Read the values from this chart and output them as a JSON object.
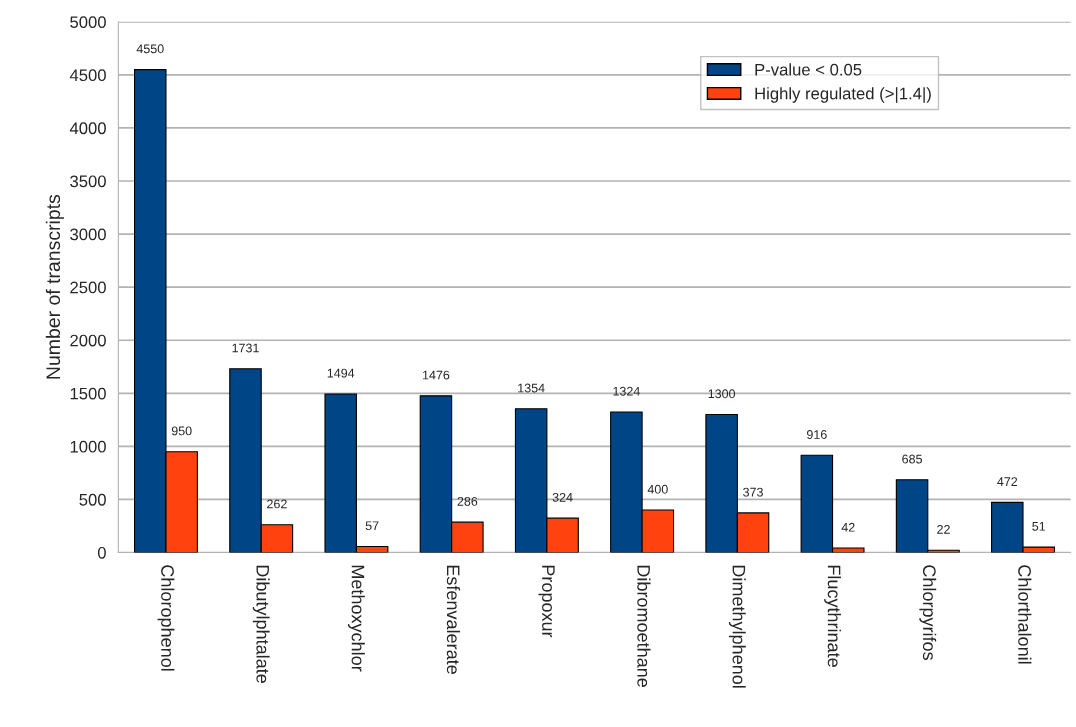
{
  "chart_data": {
    "type": "bar",
    "ylabel": "Number of transcripts",
    "categories": [
      "Chlorophenol",
      "Dibutylphtalate",
      "Methoxychlor",
      "Esfenvalerate",
      "Propoxur",
      "Dibromoethane",
      "Dimethylphenol",
      "Flucythrinate",
      "Chlorpyrifos",
      "Chlorthalonil"
    ],
    "series": [
      {
        "name": "P-value < 0.05",
        "color": "#004586",
        "values": [
          4550,
          1731,
          1494,
          1476,
          1354,
          1324,
          1300,
          916,
          685,
          472
        ]
      },
      {
        "name": "Highly regulated (>|1.4|)",
        "color": "#ff420e",
        "values": [
          950,
          262,
          57,
          286,
          324,
          400,
          373,
          42,
          22,
          51
        ]
      }
    ],
    "ylim": [
      0,
      5000
    ],
    "yticks": [
      0,
      500,
      1000,
      1500,
      2000,
      2500,
      3000,
      3500,
      4000,
      4500,
      5000
    ],
    "grid": "y",
    "legend": "top right",
    "data_labels": true
  }
}
